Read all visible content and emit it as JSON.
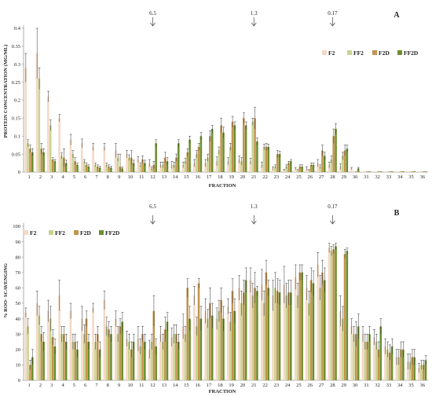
{
  "colors": {
    "F2": "#f4d9c5",
    "FF2": "#c8d490",
    "F2D": "#c2944f",
    "FF2D": "#6b8f2e",
    "axis": "#999999",
    "error": "#333333"
  },
  "chart_data": [
    {
      "type": "bar",
      "panel_label": "A",
      "xlabel": "FRACTION",
      "ylabel": "PROTEIN CONCENTRATION (MG/ML)",
      "ylim": [
        0,
        0.4
      ],
      "yticks": [
        "0",
        "0.05",
        "0.1",
        "0.15",
        "0.2",
        "0.25",
        "0.3",
        "0.35",
        "0.4"
      ],
      "yticks_values": [
        0,
        0.05,
        0.1,
        0.15,
        0.2,
        0.25,
        0.3,
        0.35,
        0.4
      ],
      "grid": false,
      "legend_position": "top-right",
      "markers": [
        {
          "label": "6.5",
          "fraction": 12
        },
        {
          "label": "1.3",
          "fraction": 21
        },
        {
          "label": "0.17",
          "fraction": 28
        }
      ],
      "categories": [
        "1",
        "2",
        "3",
        "4",
        "5",
        "6",
        "7",
        "8",
        "9",
        "10",
        "11",
        "12",
        "13",
        "14",
        "15",
        "16",
        "17",
        "18",
        "19",
        "20",
        "21",
        "22",
        "23",
        "24",
        "25",
        "26",
        "27",
        "28",
        "29",
        "30",
        "31",
        "32",
        "33",
        "34",
        "35",
        "36"
      ],
      "series": [
        {
          "name": "F2",
          "values": [
            0.29,
            0.33,
            0.21,
            0.15,
            0.09,
            0.08,
            0.07,
            0.07,
            0.06,
            0.05,
            0.035,
            0.025,
            0.02,
            0.02,
            0.02,
            0.025,
            0.025,
            0.03,
            0.03,
            0.035,
            0.03,
            0.02,
            0.01,
            0.005,
            0.01,
            0.01,
            0.025,
            0.02,
            0.015,
            0.01,
            0.002,
            0.002,
            0.002,
            0.002,
            0.002,
            0.002
          ],
          "errors": [
            0.04,
            0.07,
            0.015,
            0.01,
            0.015,
            0.012,
            0.01,
            0.01,
            0.02,
            0.01,
            0.008,
            0.01,
            0.008,
            0.01,
            0.008,
            0.01,
            0.01,
            0.012,
            0.01,
            0.01,
            0.008,
            0.008,
            0.005,
            0.003,
            0.003,
            0.005,
            0.01,
            0.008,
            0.008,
            0.003,
            0,
            0,
            0,
            0,
            0,
            0
          ]
        },
        {
          "name": "FF2",
          "values": [
            0.08,
            0.26,
            0.13,
            0.045,
            0.05,
            0.03,
            0.02,
            0.02,
            0.04,
            0.04,
            0.02,
            0.01,
            0.02,
            0.02,
            0.03,
            0.05,
            0.04,
            0.06,
            0.07,
            0.03,
            0.14,
            0.07,
            0.015,
            0.015,
            0.005,
            0.005,
            0.015,
            0.035,
            0.045,
            0,
            0,
            0,
            0,
            0,
            0,
            0
          ],
          "errors": [
            0.01,
            0.03,
            0.015,
            0.008,
            0.01,
            0.005,
            0.005,
            0.005,
            0.01,
            0.008,
            0.005,
            0.005,
            0.008,
            0.008,
            0.008,
            0.01,
            0.01,
            0.01,
            0.01,
            0.01,
            0.01,
            0.008,
            0.005,
            0.005,
            0.002,
            0.002,
            0.005,
            0.01,
            0.01,
            0,
            0,
            0,
            0,
            0,
            0,
            0
          ]
        },
        {
          "name": "F2D",
          "values": [
            0.065,
            0.065,
            0.035,
            0.04,
            0.03,
            0.02,
            0.015,
            0.015,
            0.015,
            0.04,
            0.035,
            0.02,
            0.04,
            0.04,
            0.055,
            0.07,
            0.1,
            0.13,
            0.14,
            0.15,
            0.15,
            0.07,
            0.05,
            0.025,
            0.015,
            0.02,
            0.06,
            0.1,
            0.06,
            0.002,
            0.002,
            0.002,
            0.002,
            0.002,
            0.002,
            0.002
          ],
          "errors": [
            0.01,
            0.015,
            0.005,
            0.025,
            0.01,
            0.005,
            0.005,
            0.005,
            0.035,
            0.02,
            0.01,
            0.01,
            0.015,
            0.01,
            0.01,
            0.01,
            0.015,
            0.02,
            0.015,
            0.015,
            0.03,
            0.01,
            0.01,
            0.005,
            0.005,
            0.005,
            0.015,
            0.02,
            0.015,
            0,
            0,
            0,
            0,
            0,
            0,
            0
          ]
        },
        {
          "name": "FF2D",
          "values": [
            0.055,
            0.055,
            0.03,
            0.025,
            0.02,
            0.015,
            0.012,
            0.012,
            0.01,
            0.025,
            0.025,
            0.08,
            0.03,
            0.08,
            0.09,
            0.1,
            0.12,
            0.11,
            0.13,
            0.13,
            0.085,
            0.07,
            0.05,
            0.03,
            0.015,
            0.02,
            0.045,
            0.12,
            0.065,
            0.01,
            0.002,
            0.002,
            0.002,
            0.002,
            0.002,
            0.002
          ],
          "errors": [
            0.01,
            0.01,
            0.005,
            0.008,
            0.005,
            0.005,
            0.004,
            0.004,
            0.004,
            0.008,
            0.008,
            0.01,
            0.01,
            0.01,
            0.01,
            0.01,
            0.01,
            0.015,
            0.01,
            0.01,
            0.01,
            0.008,
            0.008,
            0.005,
            0.005,
            0.005,
            0.01,
            0.015,
            0.01,
            0.003,
            0,
            0,
            0,
            0,
            0,
            0
          ]
        }
      ]
    },
    {
      "type": "bar",
      "panel_label": "B",
      "xlabel": "FRACTION",
      "ylabel": "% ROO· SCAVENGING",
      "ylim": [
        0,
        100
      ],
      "yticks": [
        "0",
        "10",
        "20",
        "30",
        "40",
        "50",
        "60",
        "70",
        "80",
        "90",
        "100"
      ],
      "yticks_values": [
        0,
        10,
        20,
        30,
        40,
        50,
        60,
        70,
        80,
        90,
        100
      ],
      "grid": false,
      "legend_position": "top-left",
      "markers": [
        {
          "label": "6.5",
          "fraction": 12
        },
        {
          "label": "1.3",
          "fraction": 21
        },
        {
          "label": "0.17",
          "fraction": 28
        }
      ],
      "categories": [
        "1",
        "2",
        "3",
        "4",
        "5",
        "6",
        "7",
        "8",
        "9",
        "10",
        "11",
        "12",
        "13",
        "14",
        "15",
        "16",
        "17",
        "18",
        "19",
        "20",
        "21",
        "22",
        "23",
        "24",
        "25",
        "26",
        "27",
        "28",
        "29",
        "30",
        "31",
        "32",
        "33",
        "34",
        "35",
        "36"
      ],
      "series": [
        {
          "name": "F2",
          "values": [
            44,
            50,
            45,
            55,
            45,
            40,
            47,
            52,
            40,
            27,
            27,
            20,
            30,
            28,
            35,
            55,
            45,
            40,
            48,
            60,
            65,
            62,
            55,
            62,
            67,
            60,
            75,
            86,
            45,
            35,
            30,
            28,
            22,
            15,
            12,
            8
          ],
          "errors": [
            3,
            8,
            7,
            10,
            5,
            8,
            3,
            6,
            5,
            5,
            8,
            6,
            5,
            6,
            8,
            6,
            8,
            7,
            5,
            8,
            8,
            10,
            10,
            12,
            8,
            8,
            8,
            3,
            10,
            5,
            5,
            5,
            5,
            5,
            5,
            3
          ]
        },
        {
          "name": "FF2",
          "values": [
            35,
            42,
            40,
            30,
            25,
            30,
            25,
            35,
            30,
            25,
            22,
            25,
            25,
            30,
            30,
            35,
            40,
            45,
            38,
            50,
            55,
            50,
            60,
            55,
            55,
            50,
            60,
            84,
            40,
            30,
            25,
            25,
            20,
            15,
            12,
            10
          ],
          "errors": [
            5,
            6,
            8,
            5,
            5,
            6,
            5,
            6,
            5,
            5,
            5,
            5,
            5,
            6,
            5,
            6,
            6,
            7,
            6,
            8,
            8,
            8,
            10,
            8,
            8,
            8,
            8,
            3,
            8,
            5,
            5,
            5,
            5,
            5,
            5,
            3
          ]
        },
        {
          "name": "F2D",
          "values": [
            10,
            30,
            28,
            30,
            25,
            40,
            30,
            33,
            35,
            20,
            30,
            45,
            33,
            30,
            60,
            63,
            50,
            52,
            58,
            57,
            60,
            70,
            58,
            57,
            70,
            65,
            70,
            85,
            82,
            30,
            25,
            20,
            18,
            20,
            15,
            10
          ],
          "errors": [
            3,
            5,
            5,
            5,
            5,
            5,
            5,
            5,
            5,
            5,
            5,
            10,
            8,
            6,
            6,
            3,
            10,
            8,
            8,
            8,
            10,
            8,
            8,
            8,
            5,
            8,
            8,
            3,
            3,
            8,
            5,
            5,
            5,
            5,
            5,
            3
          ]
        },
        {
          "name": "FF2D",
          "values": [
            15,
            25,
            22,
            25,
            20,
            25,
            20,
            30,
            38,
            25,
            25,
            22,
            38,
            25,
            40,
            40,
            42,
            40,
            45,
            65,
            58,
            60,
            57,
            57,
            70,
            63,
            65,
            87,
            84,
            35,
            30,
            35,
            22,
            20,
            15,
            13
          ],
          "errors": [
            5,
            6,
            5,
            5,
            5,
            5,
            5,
            5,
            6,
            5,
            5,
            5,
            6,
            5,
            8,
            8,
            8,
            8,
            8,
            8,
            3,
            5,
            8,
            8,
            5,
            8,
            8,
            2,
            2,
            8,
            5,
            5,
            5,
            5,
            5,
            3
          ]
        }
      ]
    }
  ]
}
